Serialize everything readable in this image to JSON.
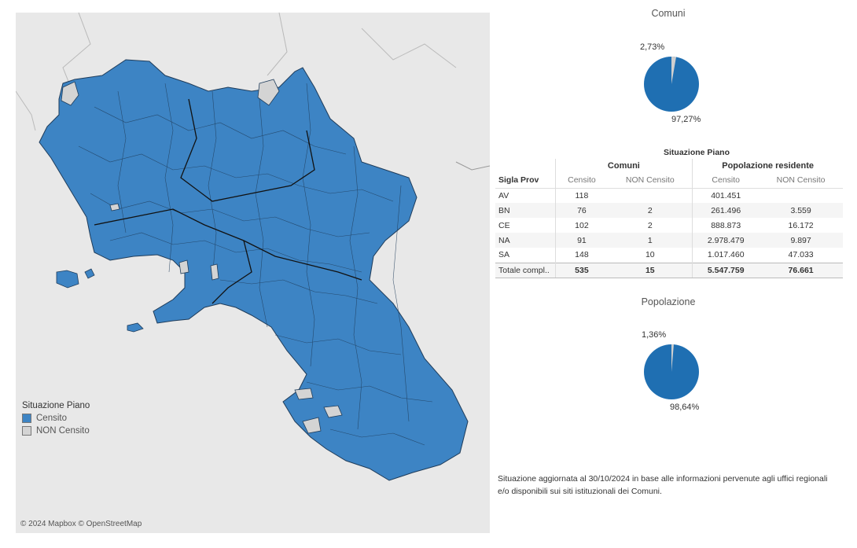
{
  "map": {
    "legend_title": "Situazione Piano",
    "legend_items": [
      {
        "label": "Censito",
        "color": "#3d84c4"
      },
      {
        "label": "NON Censito",
        "color": "#d4d4d4"
      }
    ],
    "copyright": "© 2024 Mapbox © OpenStreetMap"
  },
  "pie_comuni": {
    "title": "Comuni",
    "small_label": "2,73%",
    "large_label": "97,27%"
  },
  "pie_popolazione": {
    "title": "Popolazione",
    "small_label": "1,36%",
    "large_label": "98,64%"
  },
  "table": {
    "title": "Situazione Piano",
    "group_comuni": "Comuni",
    "group_popolazione": "Popolazione residente",
    "col_prov": "Sigla Prov",
    "col_censito": "Censito",
    "col_non_censito": "NON Censito",
    "rows": [
      {
        "prov": "AV",
        "comuni_censito": "118",
        "comuni_non": "",
        "pop_censito": "401.451",
        "pop_non": ""
      },
      {
        "prov": "BN",
        "comuni_censito": "76",
        "comuni_non": "2",
        "pop_censito": "261.496",
        "pop_non": "3.559"
      },
      {
        "prov": "CE",
        "comuni_censito": "102",
        "comuni_non": "2",
        "pop_censito": "888.873",
        "pop_non": "16.172"
      },
      {
        "prov": "NA",
        "comuni_censito": "91",
        "comuni_non": "1",
        "pop_censito": "2.978.479",
        "pop_non": "9.897"
      },
      {
        "prov": "SA",
        "comuni_censito": "148",
        "comuni_non": "10",
        "pop_censito": "1.017.460",
        "pop_non": "47.033"
      }
    ],
    "total": {
      "prov": "Totale compl..",
      "comuni_censito": "535",
      "comuni_non": "15",
      "pop_censito": "5.547.759",
      "pop_non": "76.661"
    }
  },
  "note": "Situazione aggiornata al 30/10/2024 in base alle informazioni pervenute agli uffici regionali e/o disponibili sui siti istituzionali dei Comuni.",
  "colors": {
    "censito": "#3d84c4",
    "non_censito": "#d4d4d4",
    "map_bg": "#e8e8e8"
  }
}
